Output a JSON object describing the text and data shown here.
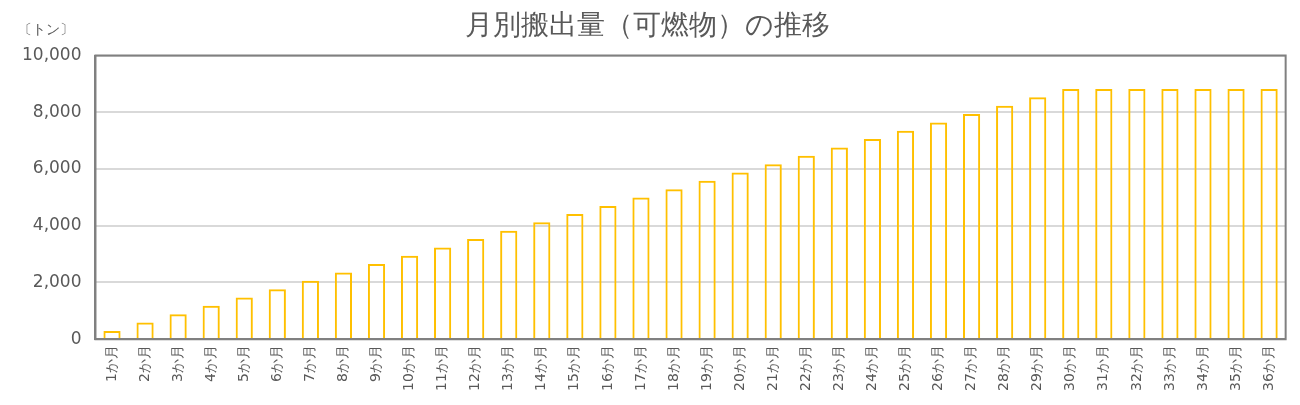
{
  "chart_data": {
    "type": "bar",
    "title": "月別搬出量（可燃物）の推移",
    "ylabel": "〔トン〕",
    "categories": [
      "1か月",
      "2か月",
      "3か月",
      "4か月",
      "5か月",
      "6か月",
      "7か月",
      "8か月",
      "9か月",
      "10か月",
      "11か月",
      "12か月",
      "13か月",
      "14か月",
      "15か月",
      "16か月",
      "17か月",
      "18か月",
      "19か月",
      "20か月",
      "21か月",
      "22か月",
      "23か月",
      "24か月",
      "25か月",
      "26か月",
      "27か月",
      "28か月",
      "29か月",
      "30か月",
      "31か月",
      "32か月",
      "33か月",
      "34か月",
      "35か月",
      "36か月"
    ],
    "values": [
      290,
      590,
      880,
      1180,
      1470,
      1760,
      2060,
      2350,
      2650,
      2940,
      3230,
      3530,
      3820,
      4120,
      4410,
      4700,
      5000,
      5290,
      5590,
      5880,
      6170,
      6470,
      6760,
      7060,
      7350,
      7640,
      7940,
      8230,
      8530,
      8820,
      8820,
      8820,
      8820,
      8820,
      8820,
      8820
    ],
    "color": "#ffc000",
    "ylim": [
      0,
      10000
    ],
    "yticks": [
      0,
      {
        "value": 2000,
        "label": "2,000"
      },
      {
        "value": 4000,
        "label": "4,000"
      },
      {
        "value": 6000,
        "label": "6,000"
      },
      {
        "value": 8000,
        "label": "8,000"
      },
      {
        "value": 10000,
        "label": "10,000"
      }
    ],
    "grid": "y",
    "legend": false
  }
}
